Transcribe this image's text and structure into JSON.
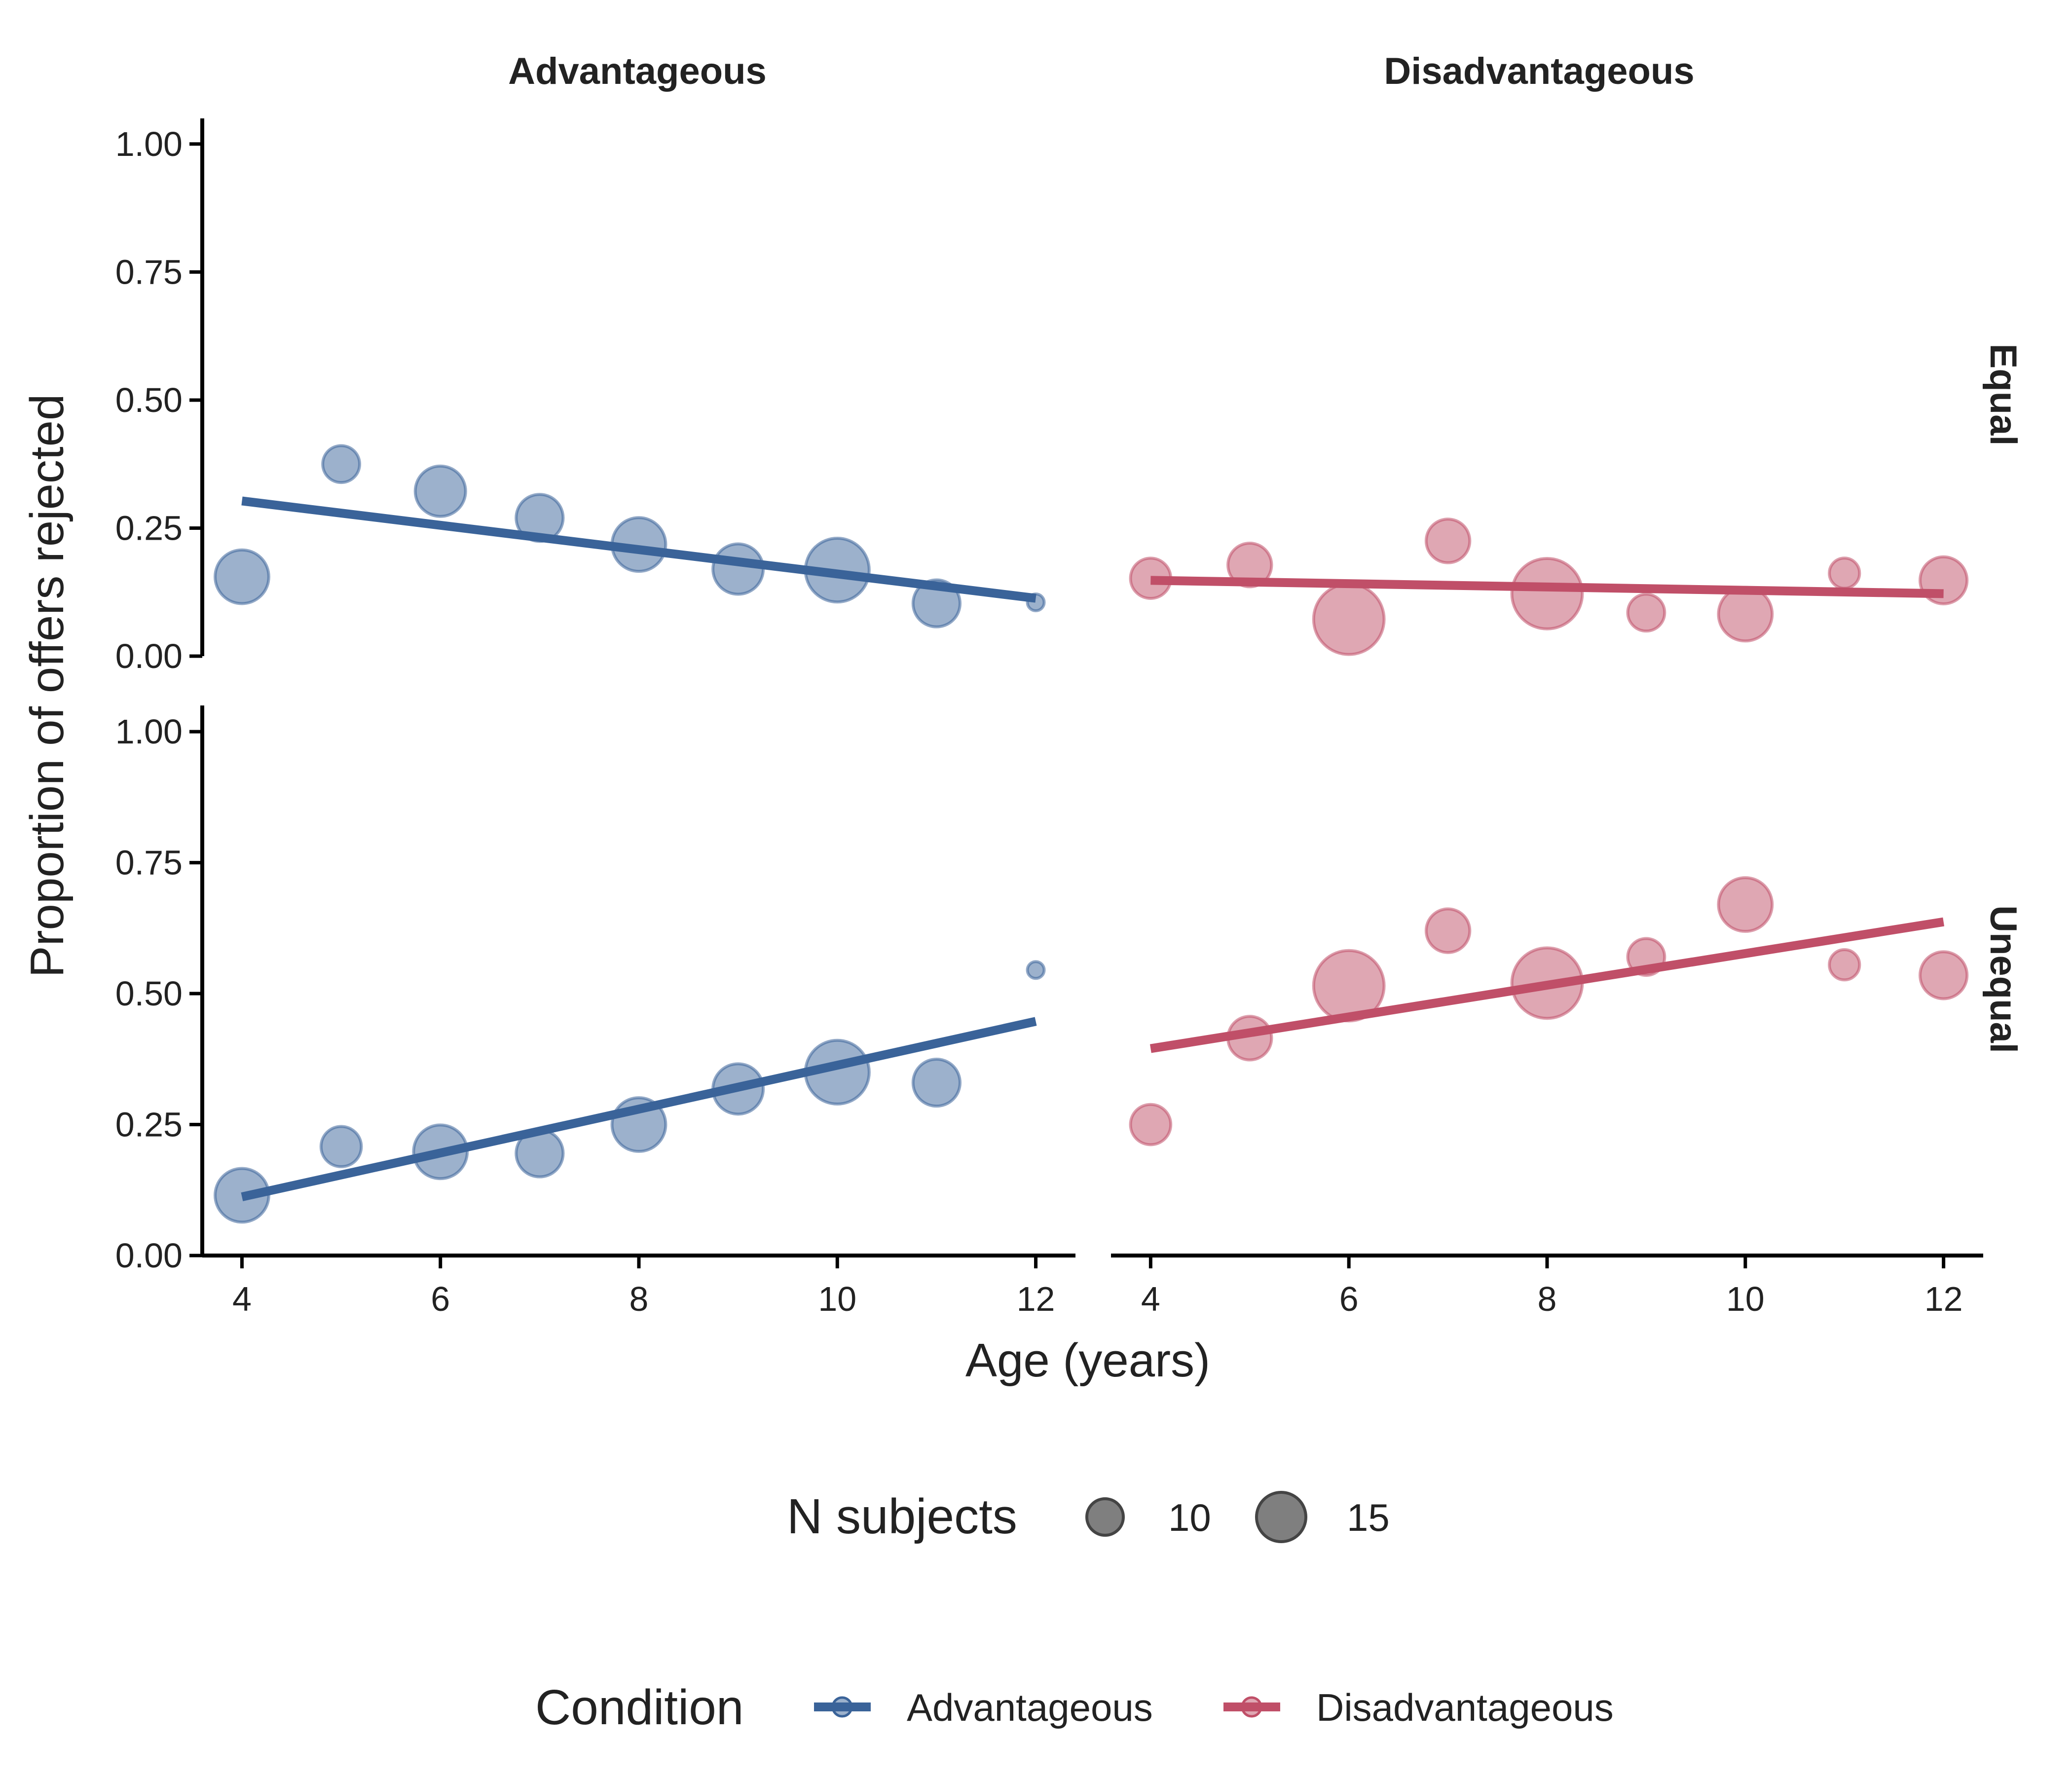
{
  "chart_data": {
    "type": "scatter",
    "facet_columns": [
      "Advantageous",
      "Disadvantageous"
    ],
    "facet_rows": [
      "Equal",
      "Unequal"
    ],
    "xlabel": "Age (years)",
    "ylabel": "Proportion of offers rejected",
    "xlim": [
      3.6,
      12.4
    ],
    "ylim": [
      0,
      1.05
    ],
    "x_ticks": [
      "4",
      "6",
      "8",
      "10",
      "12"
    ],
    "y_ticks": [
      "0.00",
      "0.25",
      "0.50",
      "0.75",
      "1.00"
    ],
    "grid": false,
    "colors": {
      "Advantageous": "#3a6399",
      "Disadvantageous": "#c04f68"
    },
    "panels": [
      {
        "column": "Advantageous",
        "row": "Equal",
        "points": [
          {
            "x": 4,
            "y": 0.155,
            "n": 14
          },
          {
            "x": 5,
            "y": 0.375,
            "n": 9
          },
          {
            "x": 6,
            "y": 0.322,
            "n": 13
          },
          {
            "x": 7,
            "y": 0.27,
            "n": 12
          },
          {
            "x": 8,
            "y": 0.218,
            "n": 14
          },
          {
            "x": 9,
            "y": 0.17,
            "n": 13
          },
          {
            "x": 10,
            "y": 0.168,
            "n": 17
          },
          {
            "x": 11,
            "y": 0.103,
            "n": 12
          },
          {
            "x": 12,
            "y": 0.105,
            "n": 3
          }
        ],
        "fit": {
          "x": [
            4,
            12
          ],
          "y": [
            0.303,
            0.113
          ]
        }
      },
      {
        "column": "Disadvantageous",
        "row": "Equal",
        "points": [
          {
            "x": 4,
            "y": 0.152,
            "n": 10
          },
          {
            "x": 5,
            "y": 0.178,
            "n": 11
          },
          {
            "x": 6,
            "y": 0.072,
            "n": 19
          },
          {
            "x": 7,
            "y": 0.225,
            "n": 11
          },
          {
            "x": 8,
            "y": 0.122,
            "n": 19
          },
          {
            "x": 9,
            "y": 0.085,
            "n": 9
          },
          {
            "x": 10,
            "y": 0.082,
            "n": 14
          },
          {
            "x": 11,
            "y": 0.162,
            "n": 7
          },
          {
            "x": 12,
            "y": 0.148,
            "n": 12
          }
        ],
        "fit": {
          "x": [
            4,
            12
          ],
          "y": [
            0.148,
            0.122
          ]
        }
      },
      {
        "column": "Advantageous",
        "row": "Unequal",
        "points": [
          {
            "x": 4,
            "y": 0.115,
            "n": 14
          },
          {
            "x": 5,
            "y": 0.208,
            "n": 10
          },
          {
            "x": 6,
            "y": 0.198,
            "n": 14
          },
          {
            "x": 7,
            "y": 0.195,
            "n": 12
          },
          {
            "x": 8,
            "y": 0.25,
            "n": 14
          },
          {
            "x": 9,
            "y": 0.318,
            "n": 13
          },
          {
            "x": 10,
            "y": 0.35,
            "n": 17
          },
          {
            "x": 11,
            "y": 0.33,
            "n": 12
          },
          {
            "x": 12,
            "y": 0.545,
            "n": 3
          }
        ],
        "fit": {
          "x": [
            4,
            12
          ],
          "y": [
            0.112,
            0.447
          ]
        }
      },
      {
        "column": "Disadvantageous",
        "row": "Unequal",
        "points": [
          {
            "x": 4,
            "y": 0.25,
            "n": 10
          },
          {
            "x": 5,
            "y": 0.415,
            "n": 11
          },
          {
            "x": 6,
            "y": 0.515,
            "n": 19
          },
          {
            "x": 7,
            "y": 0.62,
            "n": 11
          },
          {
            "x": 8,
            "y": 0.52,
            "n": 19
          },
          {
            "x": 9,
            "y": 0.57,
            "n": 9
          },
          {
            "x": 10,
            "y": 0.67,
            "n": 14
          },
          {
            "x": 11,
            "y": 0.555,
            "n": 7
          },
          {
            "x": 12,
            "y": 0.535,
            "n": 12
          }
        ],
        "fit": {
          "x": [
            4,
            12
          ],
          "y": [
            0.395,
            0.637
          ]
        }
      }
    ],
    "size_legend": {
      "title": "N subjects",
      "entries": [
        {
          "label": "10",
          "n": 10
        },
        {
          "label": "15",
          "n": 15
        }
      ]
    },
    "color_legend": {
      "title": "Condition",
      "entries": [
        "Advantageous",
        "Disadvantageous"
      ]
    }
  }
}
